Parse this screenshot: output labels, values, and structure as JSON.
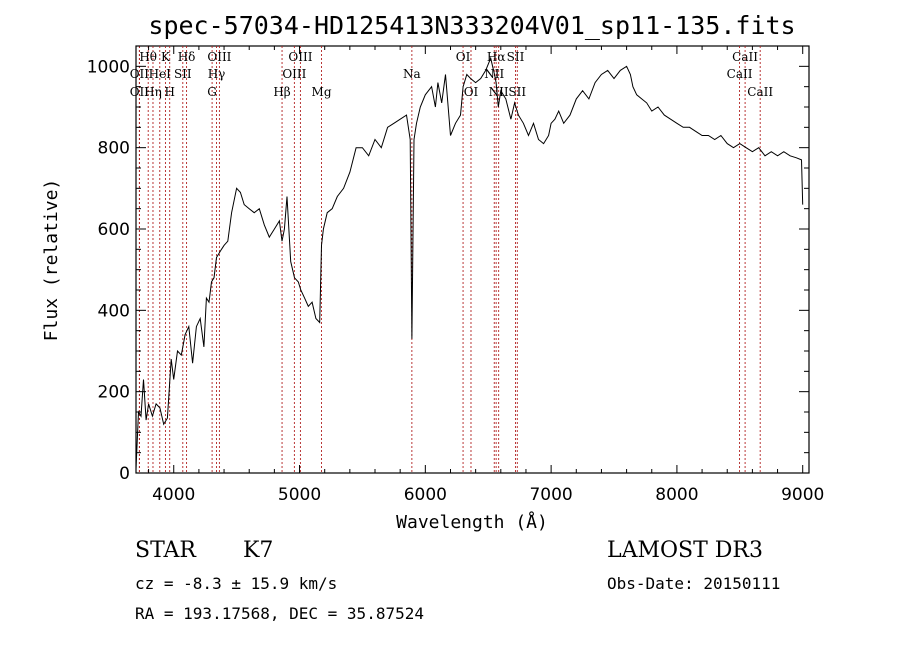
{
  "chart_data": {
    "type": "line",
    "title": "spec-57034-HD125413N333204V01_sp11-135.fits",
    "xlabel": "Wavelength (Å)",
    "ylabel": "Flux (relative)",
    "xlim": [
      3700,
      9050
    ],
    "ylim": [
      0,
      1050
    ],
    "xticks": [
      4000,
      5000,
      6000,
      7000,
      8000,
      9000
    ],
    "yticks": [
      0,
      200,
      400,
      600,
      800,
      1000
    ],
    "grid": false,
    "series": [
      {
        "x": [
          3700,
          3720,
          3740,
          3760,
          3780,
          3800,
          3830,
          3860,
          3890,
          3920,
          3950,
          3980,
          4000,
          4030,
          4060,
          4090,
          4120,
          4150,
          4180,
          4210,
          4240,
          4260,
          4280,
          4300,
          4320,
          4340,
          4360,
          4380,
          4400,
          4430,
          4460,
          4500,
          4530,
          4560,
          4600,
          4640,
          4680,
          4720,
          4760,
          4800,
          4840,
          4861,
          4880,
          4900,
          4930,
          4960,
          4990,
          5010,
          5040,
          5070,
          5100,
          5130,
          5160,
          5175,
          5190,
          5220,
          5260,
          5300,
          5350,
          5400,
          5450,
          5500,
          5550,
          5600,
          5650,
          5700,
          5750,
          5800,
          5850,
          5880,
          5893,
          5910,
          5930,
          5960,
          6000,
          6050,
          6080,
          6100,
          6130,
          6160,
          6200,
          6240,
          6280,
          6300,
          6330,
          6360,
          6400,
          6440,
          6480,
          6520,
          6550,
          6563,
          6580,
          6600,
          6640,
          6680,
          6710,
          6740,
          6780,
          6820,
          6860,
          6900,
          6940,
          6980,
          7000,
          7030,
          7060,
          7100,
          7150,
          7200,
          7250,
          7300,
          7350,
          7400,
          7450,
          7500,
          7550,
          7600,
          7630,
          7650,
          7680,
          7720,
          7760,
          7800,
          7850,
          7900,
          7950,
          8000,
          8050,
          8100,
          8150,
          8200,
          8250,
          8300,
          8350,
          8400,
          8450,
          8500,
          8550,
          8600,
          8650,
          8700,
          8750,
          8800,
          8850,
          8900,
          8950,
          8990,
          9000
        ],
        "y": [
          10,
          150,
          140,
          230,
          130,
          170,
          140,
          170,
          160,
          120,
          135,
          280,
          230,
          300,
          290,
          340,
          360,
          270,
          360,
          380,
          310,
          430,
          420,
          470,
          480,
          530,
          540,
          550,
          560,
          570,
          640,
          700,
          690,
          660,
          650,
          640,
          650,
          610,
          580,
          600,
          620,
          570,
          600,
          680,
          520,
          480,
          470,
          450,
          430,
          410,
          420,
          380,
          370,
          560,
          600,
          640,
          650,
          680,
          700,
          740,
          800,
          800,
          780,
          820,
          800,
          850,
          860,
          870,
          880,
          820,
          330,
          820,
          860,
          900,
          930,
          950,
          900,
          960,
          910,
          980,
          830,
          860,
          880,
          950,
          980,
          970,
          960,
          970,
          990,
          1020,
          980,
          960,
          900,
          940,
          920,
          870,
          910,
          880,
          860,
          830,
          860,
          820,
          810,
          830,
          860,
          870,
          890,
          860,
          880,
          920,
          940,
          920,
          960,
          980,
          990,
          970,
          990,
          1000,
          980,
          950,
          930,
          920,
          910,
          890,
          900,
          880,
          870,
          860,
          850,
          850,
          840,
          830,
          830,
          820,
          830,
          810,
          800,
          810,
          800,
          790,
          800,
          780,
          790,
          780,
          790,
          780,
          775,
          770,
          660
        ]
      }
    ],
    "lines": [
      {
        "name": "Hθ",
        "x": 3797,
        "row": 0
      },
      {
        "name": "OII",
        "x": 3727,
        "row": 1
      },
      {
        "name": "OII",
        "x": 3727,
        "row": 2
      },
      {
        "name": "K",
        "x": 3934,
        "row": 0
      },
      {
        "name": "HeI",
        "x": 3889,
        "row": 1
      },
      {
        "name": "Hη",
        "x": 3835,
        "row": 2
      },
      {
        "name": "H",
        "x": 3968,
        "row": 2
      },
      {
        "name": "Hδ",
        "x": 4102,
        "row": 0
      },
      {
        "name": "SII",
        "x": 4072,
        "row": 1
      },
      {
        "name": "OIII",
        "x": 4363,
        "row": 0
      },
      {
        "name": "Hγ",
        "x": 4340,
        "row": 1
      },
      {
        "name": "G",
        "x": 4305,
        "row": 2
      },
      {
        "name": "OIII",
        "x": 5007,
        "row": 0
      },
      {
        "name": "OIII",
        "x": 4959,
        "row": 1
      },
      {
        "name": "Hβ",
        "x": 4861,
        "row": 2
      },
      {
        "name": "Mg",
        "x": 5175,
        "row": 2
      },
      {
        "name": "Na",
        "x": 5893,
        "row": 1
      },
      {
        "name": "OI",
        "x": 6300,
        "row": 0
      },
      {
        "name": "OI",
        "x": 6363,
        "row": 2
      },
      {
        "name": "Hα",
        "x": 6563,
        "row": 0
      },
      {
        "name": "SII",
        "x": 6717,
        "row": 0
      },
      {
        "name": "NII",
        "x": 6548,
        "row": 1
      },
      {
        "name": "NII",
        "x": 6583,
        "row": 2
      },
      {
        "name": "SII",
        "x": 6731,
        "row": 2
      },
      {
        "name": "CaII",
        "x": 8542,
        "row": 0
      },
      {
        "name": "CaII",
        "x": 8498,
        "row": 1
      },
      {
        "name": "CaII",
        "x": 8662,
        "row": 2
      }
    ]
  },
  "info": {
    "object_class": "STAR",
    "subclass": "K7",
    "survey": "LAMOST DR3",
    "cz": "cz = -8.3 ± 15.9 km/s",
    "obs_date": "Obs-Date: 20150111",
    "radec": "RA = 193.17568, DEC =  35.87524"
  }
}
